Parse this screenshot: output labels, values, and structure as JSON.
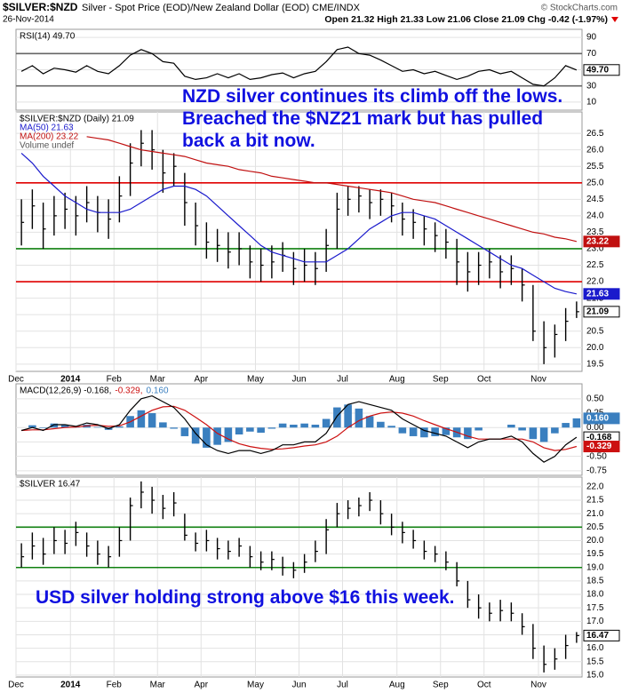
{
  "header": {
    "symbol": "$SILVER:$NZD",
    "description": "Silver - Spot Price (EOD)/New Zealand Dollar (EOD) CME/INDX",
    "date": "26-Nov-2014",
    "copyright": "© StockCharts.com",
    "ohlc": "Open 21.32 High 21.33 Low 21.06 Close 21.09 Chg -0.42 (-1.97%)"
  },
  "chart_data": [
    {
      "type": "line",
      "ylim": [
        0,
        100
      ],
      "yticks": [
        90,
        70,
        50,
        30,
        10
      ],
      "grid": true,
      "hlines": [
        {
          "value": 70,
          "color": "#666666"
        },
        {
          "value": 30,
          "color": "#666666"
        }
      ],
      "series": [
        {
          "name": "RSI(14) 49.70",
          "color": "#000000",
          "values": [
            48,
            55,
            45,
            52,
            50,
            47,
            55,
            48,
            45,
            55,
            68,
            75,
            70,
            60,
            58,
            42,
            38,
            40,
            45,
            40,
            45,
            38,
            40,
            44,
            46,
            40,
            45,
            48,
            60,
            75,
            78,
            70,
            68,
            62,
            55,
            48,
            50,
            45,
            48,
            43,
            38,
            42,
            48,
            50,
            45,
            48,
            40,
            32,
            30,
            40,
            55,
            49.7
          ]
        }
      ],
      "value_tags": [
        {
          "value": 49.7,
          "label": "49.70",
          "color": "#000000"
        }
      ]
    },
    {
      "type": "ohlc",
      "name": "$SILVER:$NZD (Daily) 21.09",
      "volume_label": "Volume undef",
      "color": "#000000",
      "categories": [
        "Dec",
        null,
        null,
        null,
        null,
        "2014",
        null,
        null,
        null,
        "Feb",
        null,
        null,
        null,
        "Mar",
        null,
        null,
        null,
        "Apr",
        null,
        null,
        null,
        null,
        "May",
        null,
        null,
        null,
        "Jun",
        null,
        null,
        null,
        "Jul",
        null,
        null,
        null,
        null,
        "Aug",
        null,
        null,
        null,
        "Sep",
        null,
        null,
        null,
        "Oct",
        null,
        null,
        null,
        null,
        "Nov",
        null,
        null,
        null
      ],
      "high": [
        24.5,
        24.8,
        24.4,
        24.6,
        24.7,
        24.6,
        24.9,
        24.6,
        24.5,
        25.2,
        26.2,
        26.6,
        26.6,
        26.0,
        25.9,
        25.3,
        24.4,
        23.8,
        23.6,
        23.5,
        23.5,
        23.1,
        23.0,
        23.1,
        23.2,
        22.9,
        23.0,
        22.9,
        23.6,
        24.7,
        24.9,
        24.9,
        24.8,
        24.8,
        24.7,
        24.4,
        24.2,
        24.0,
        23.8,
        23.6,
        23.3,
        22.9,
        22.9,
        23.0,
        22.8,
        22.8,
        22.4,
        21.9,
        20.8,
        20.7,
        21.2,
        21.4
      ],
      "low": [
        23.1,
        23.6,
        23.0,
        23.4,
        23.6,
        23.4,
        23.8,
        23.5,
        23.3,
        23.8,
        24.6,
        25.5,
        25.4,
        24.7,
        24.9,
        23.7,
        23.1,
        22.7,
        22.6,
        22.4,
        22.5,
        22.1,
        22.0,
        22.1,
        22.3,
        21.9,
        22.0,
        21.9,
        22.3,
        23.0,
        24.0,
        24.1,
        23.9,
        24.0,
        23.8,
        23.4,
        23.3,
        23.1,
        22.9,
        22.7,
        21.9,
        21.7,
        21.9,
        22.1,
        21.8,
        21.9,
        21.4,
        20.2,
        19.5,
        19.7,
        20.2,
        20.9
      ],
      "close": [
        23.8,
        24.3,
        23.6,
        24.0,
        24.2,
        24.0,
        24.4,
        24.1,
        23.9,
        24.6,
        25.6,
        26.2,
        26.0,
        25.3,
        25.5,
        24.4,
        23.7,
        23.2,
        23.1,
        22.9,
        23.0,
        22.6,
        22.5,
        22.6,
        22.8,
        22.4,
        22.5,
        22.4,
        23.1,
        24.2,
        24.5,
        24.6,
        24.4,
        24.5,
        24.3,
        23.9,
        23.8,
        23.6,
        23.4,
        23.2,
        22.6,
        22.3,
        22.5,
        22.6,
        22.3,
        22.4,
        21.9,
        20.5,
        20.0,
        20.4,
        20.8,
        21.09
      ],
      "series": [
        {
          "name": "MA(50) 21.63",
          "color": "#1a1acc",
          "values": [
            25.9,
            25.6,
            25.2,
            24.9,
            24.6,
            24.4,
            24.2,
            24.1,
            24.1,
            24.1,
            24.2,
            24.4,
            24.6,
            24.8,
            24.9,
            24.9,
            24.8,
            24.6,
            24.3,
            24.0,
            23.7,
            23.4,
            23.1,
            22.9,
            22.8,
            22.7,
            22.6,
            22.6,
            22.6,
            22.8,
            23.0,
            23.3,
            23.6,
            23.8,
            24.0,
            24.1,
            24.1,
            24.0,
            23.9,
            23.7,
            23.5,
            23.3,
            23.1,
            22.9,
            22.7,
            22.5,
            22.4,
            22.2,
            22.0,
            21.8,
            21.7,
            21.63
          ]
        },
        {
          "name": "MA(200) 23.22",
          "color": "#c01010",
          "values": [
            null,
            null,
            null,
            null,
            null,
            null,
            26.4,
            26.35,
            26.3,
            26.2,
            26.1,
            26.0,
            25.95,
            25.9,
            25.85,
            25.8,
            25.7,
            25.6,
            25.55,
            25.5,
            25.4,
            25.35,
            25.3,
            25.2,
            25.15,
            25.1,
            25.05,
            25.0,
            25.0,
            24.95,
            24.9,
            24.85,
            24.8,
            24.75,
            24.7,
            24.6,
            24.5,
            24.45,
            24.4,
            24.3,
            24.2,
            24.1,
            24.0,
            23.9,
            23.8,
            23.7,
            23.6,
            23.5,
            23.45,
            23.35,
            23.3,
            23.22
          ]
        }
      ],
      "ylim": [
        19.28,
        27.15
      ],
      "yticks": [
        19.5,
        {
          "value": 20,
          "label": "20.0"
        },
        20.5,
        {
          "value": 21,
          "label": "21.0"
        },
        21.5,
        {
          "value": 22,
          "label": "22.0"
        },
        22.5,
        {
          "value": 23,
          "label": "23.0"
        },
        23.5,
        {
          "value": 24,
          "label": "24.0"
        },
        24.5,
        {
          "value": 25,
          "label": "25.0"
        },
        25.5,
        {
          "value": 26,
          "label": "26.0"
        },
        26.5
      ],
      "grid": true,
      "hlines": [
        {
          "value": 25,
          "color": "#e00000"
        },
        {
          "value": 23,
          "color": "#108010"
        },
        {
          "value": 22,
          "color": "#e00000"
        }
      ],
      "value_tags": [
        {
          "value": 23.22,
          "label": "23.22",
          "color": "#c01010"
        },
        {
          "value": 21.63,
          "label": "21.63",
          "color": "#1a1acc"
        },
        {
          "value": 21.09,
          "label": "21.09",
          "color": "#000000"
        }
      ],
      "annotation": "NZD silver continues its climb off the lows. Breached the $NZ21 mark but has pulled back a bit now."
    },
    {
      "type": "macd",
      "ylim": [
        -0.83,
        0.76
      ],
      "yticks": [
        {
          "value": 0.5,
          "label": "0.50"
        },
        {
          "value": 0.25,
          "label": "0.25"
        },
        {
          "value": 0,
          "label": "0.00"
        },
        {
          "value": -0.25,
          "label": "-0.25"
        },
        {
          "value": -0.5,
          "label": "-0.50"
        },
        {
          "value": -0.75,
          "label": "-0.75"
        }
      ],
      "grid": true,
      "series": [
        {
          "name": "0.160",
          "type": "bar",
          "color": "#3a7fbf",
          "values": [
            0,
            0.04,
            -0.01,
            0.07,
            0.05,
            0.01,
            0.05,
            0.01,
            -0.04,
            0.02,
            0.2,
            0.3,
            0.25,
            0.09,
            -0.02,
            -0.15,
            -0.28,
            -0.35,
            -0.3,
            -0.25,
            -0.12,
            -0.07,
            -0.09,
            -0.02,
            0.07,
            0.05,
            0.07,
            0.05,
            0.15,
            0.35,
            0.4,
            0.33,
            0.2,
            0.1,
            0.03,
            -0.1,
            -0.15,
            -0.17,
            -0.15,
            -0.13,
            -0.17,
            -0.2,
            -0.05,
            0,
            0,
            0.05,
            -0.05,
            -0.2,
            -0.25,
            -0.1,
            0.08,
            0.16
          ]
        },
        {
          "name": "-0.329,",
          "color": "#cc1010",
          "values": [
            -0.05,
            -0.04,
            -0.04,
            -0.02,
            0,
            0.01,
            0.03,
            0.04,
            0.02,
            0.03,
            0.1,
            0.2,
            0.3,
            0.36,
            0.37,
            0.3,
            0.18,
            0.05,
            -0.1,
            -0.2,
            -0.28,
            -0.33,
            -0.36,
            -0.38,
            -0.37,
            -0.35,
            -0.32,
            -0.3,
            -0.25,
            -0.15,
            0,
            0.12,
            0.2,
            0.25,
            0.27,
            0.25,
            0.2,
            0.12,
            0.05,
            -0.02,
            -0.08,
            -0.15,
            -0.2,
            -0.2,
            -0.2,
            -0.2,
            -0.2,
            -0.25,
            -0.35,
            -0.4,
            -0.38,
            -0.329
          ]
        },
        {
          "name": "MACD(12,26,9) -0.168,",
          "color": "#000000",
          "values": [
            -0.05,
            0,
            -0.05,
            0.05,
            0.05,
            0.02,
            0.08,
            0.05,
            -0.02,
            0.05,
            0.3,
            0.5,
            0.55,
            0.45,
            0.35,
            0.15,
            -0.1,
            -0.3,
            -0.4,
            -0.45,
            -0.4,
            -0.4,
            -0.45,
            -0.4,
            -0.3,
            -0.3,
            -0.25,
            -0.25,
            -0.1,
            0.2,
            0.4,
            0.45,
            0.4,
            0.35,
            0.3,
            0.15,
            0.05,
            -0.05,
            -0.1,
            -0.15,
            -0.25,
            -0.35,
            -0.25,
            -0.2,
            -0.2,
            -0.15,
            -0.25,
            -0.45,
            -0.6,
            -0.5,
            -0.3,
            -0.168
          ]
        }
      ],
      "legend_order": [
        2,
        1,
        0
      ],
      "value_tags": [
        {
          "value": 0.16,
          "label": "0.160",
          "color": "#3a7fbf"
        },
        {
          "value": -0.168,
          "label": "-0.168",
          "color": "#000000"
        },
        {
          "value": -0.329,
          "label": "-0.329",
          "color": "#cc1010"
        }
      ]
    },
    {
      "type": "ohlc",
      "name": "$SILVER 16.47",
      "color": "#000000",
      "categories": [
        "Dec",
        null,
        null,
        null,
        null,
        "2014",
        null,
        null,
        null,
        "Feb",
        null,
        null,
        null,
        "Mar",
        null,
        null,
        null,
        "Apr",
        null,
        null,
        null,
        null,
        "May",
        null,
        null,
        null,
        "Jun",
        null,
        null,
        null,
        "Jul",
        null,
        null,
        null,
        null,
        "Aug",
        null,
        null,
        null,
        "Sep",
        null,
        null,
        null,
        "Oct",
        null,
        null,
        null,
        null,
        "Nov",
        null,
        null,
        null
      ],
      "high": [
        19.9,
        20.3,
        20.1,
        20.5,
        20.4,
        20.7,
        20.3,
        20.0,
        19.8,
        20.5,
        21.6,
        22.2,
        22.0,
        21.7,
        21.8,
        21.0,
        20.3,
        20.4,
        20.1,
        20.0,
        20.1,
        19.8,
        19.6,
        19.6,
        19.4,
        19.2,
        19.5,
        20.0,
        20.8,
        21.4,
        21.5,
        21.6,
        21.8,
        21.5,
        21.0,
        20.7,
        20.4,
        20.0,
        19.8,
        19.6,
        19.2,
        18.5,
        18.0,
        17.7,
        17.8,
        17.7,
        17.3,
        16.9,
        16.1,
        16.0,
        16.5,
        16.6
      ],
      "low": [
        19.0,
        19.3,
        19.1,
        19.5,
        19.5,
        19.8,
        19.4,
        19.1,
        19.0,
        19.4,
        20.0,
        21.2,
        21.0,
        20.8,
        20.9,
        20.0,
        19.6,
        19.6,
        19.3,
        19.3,
        19.4,
        19.0,
        18.9,
        18.9,
        18.7,
        18.6,
        18.8,
        19.2,
        19.5,
        20.5,
        20.8,
        20.9,
        21.1,
        20.6,
        20.2,
        19.9,
        19.7,
        19.3,
        19.2,
        18.9,
        18.3,
        17.5,
        17.1,
        17.0,
        17.0,
        17.0,
        16.5,
        15.6,
        15.1,
        15.2,
        15.6,
        16.2
      ],
      "close": [
        19.4,
        19.8,
        19.5,
        20.0,
        19.9,
        20.3,
        19.8,
        19.5,
        19.4,
        20.0,
        21.3,
        21.8,
        21.5,
        21.2,
        21.4,
        20.2,
        19.9,
        20.0,
        19.7,
        19.6,
        19.8,
        19.4,
        19.2,
        19.3,
        19.0,
        18.9,
        19.2,
        19.6,
        20.4,
        21.0,
        21.2,
        21.3,
        21.5,
        21.0,
        20.5,
        20.3,
        20.0,
        19.6,
        19.5,
        19.2,
        18.5,
        17.8,
        17.5,
        17.3,
        17.4,
        17.3,
        16.8,
        16.0,
        15.4,
        15.6,
        16.1,
        16.47
      ],
      "series": [],
      "ylim": [
        14.93,
        22.36
      ],
      "yticks": [
        {
          "value": 15,
          "label": "15.0"
        },
        15.5,
        {
          "value": 16,
          "label": "16.0"
        },
        16.5,
        {
          "value": 17,
          "label": "17.0"
        },
        17.5,
        {
          "value": 18,
          "label": "18.0"
        },
        18.5,
        {
          "value": 19,
          "label": "19.0"
        },
        19.5,
        {
          "value": 20,
          "label": "20.0"
        },
        20.5,
        {
          "value": 21,
          "label": "21.0"
        },
        21.5,
        {
          "value": 22,
          "label": "22.0"
        }
      ],
      "grid": true,
      "hlines": [
        {
          "value": 20.5,
          "color": "#108010"
        },
        {
          "value": 19,
          "color": "#108010"
        }
      ],
      "value_tags": [
        {
          "value": 16.47,
          "label": "16.47",
          "color": "#000000"
        }
      ],
      "annotation": "USD silver holding strong above $16 this week."
    }
  ]
}
